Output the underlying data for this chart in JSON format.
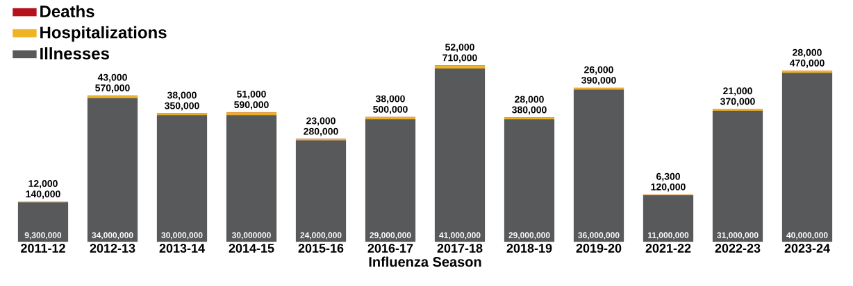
{
  "chart_data": {
    "type": "bar",
    "stacked": true,
    "xlabel": "Influenza Season",
    "legend": "top left",
    "categories": [
      "2011-12",
      "2012-13",
      "2013-14",
      "2014-15",
      "2015-16",
      "2016-17",
      "2017-18",
      "2018-19",
      "2019-20",
      "2021-22",
      "2022-23",
      "2023-24"
    ],
    "series": [
      {
        "name": "Illnesses",
        "color": "#58595b",
        "values": [
          9300000,
          34000000,
          30000000,
          30000000,
          24000000,
          29000000,
          41000000,
          29000000,
          36000000,
          11000000,
          31000000,
          40000000
        ],
        "value_labels": [
          "9,300,000",
          "34,000,000",
          "30,000,000",
          "30,000000",
          "24,000,000",
          "29,000,000",
          "41,000,000",
          "29,000,000",
          "36,000,000",
          "11,000,000",
          "31,000,000",
          "40,000,000"
        ]
      },
      {
        "name": "Hospitalizations",
        "color": "#f0b323",
        "values": [
          140000,
          570000,
          350000,
          590000,
          280000,
          500000,
          710000,
          380000,
          390000,
          120000,
          370000,
          470000
        ],
        "value_labels": [
          "140,000",
          "570,000",
          "350,000",
          "590,000",
          "280,000",
          "500,000",
          "710,000",
          "380,000",
          "390,000",
          "120,000",
          "370,000",
          "470,000"
        ]
      },
      {
        "name": "Deaths",
        "color": "#b5121b",
        "values": [
          12000,
          43000,
          38000,
          51000,
          23000,
          38000,
          52000,
          28000,
          26000,
          6300,
          21000,
          28000
        ],
        "value_labels": [
          "12,000",
          "43,000",
          "38,000",
          "51,000",
          "23,000",
          "38,000",
          "52,000",
          "28,000",
          "26,000",
          "6,300",
          "21,000",
          "28,000"
        ]
      }
    ]
  }
}
